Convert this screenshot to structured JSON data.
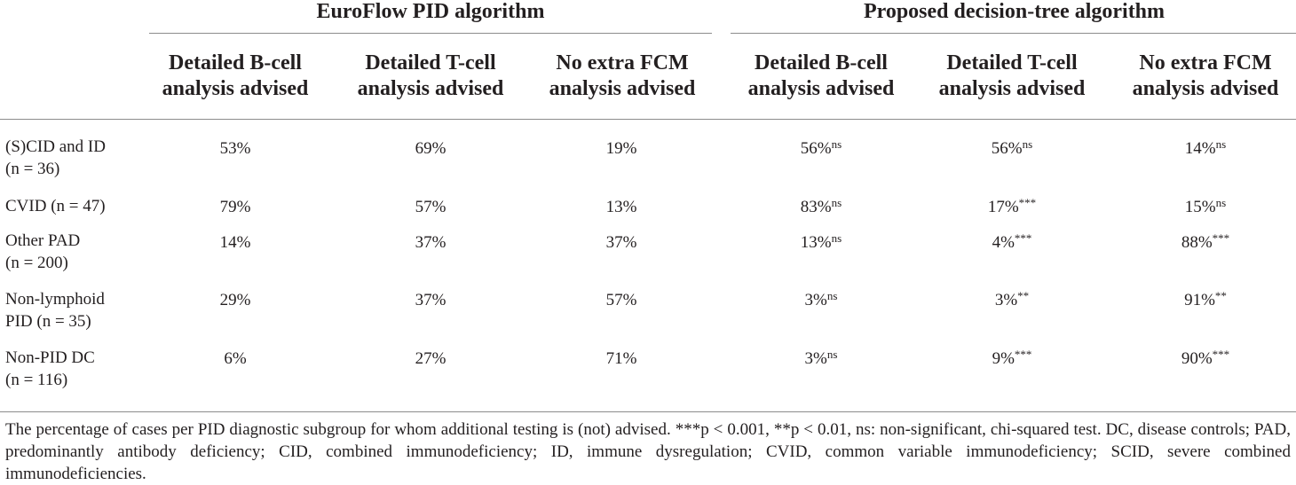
{
  "group_headers": {
    "euroflow": "EuroFlow PID algorithm",
    "proposed": "Proposed decision-tree algorithm"
  },
  "columns": [
    {
      "line1": "Detailed B-cell",
      "line2": "analysis advised"
    },
    {
      "line1": "Detailed T-cell",
      "line2": "analysis advised"
    },
    {
      "line1": "No extra FCM",
      "line2": "analysis advised"
    },
    {
      "line1": "Detailed B-cell",
      "line2": "analysis advised"
    },
    {
      "line1": "Detailed T-cell",
      "line2": "analysis advised"
    },
    {
      "line1": "No extra FCM",
      "line2": "analysis advised"
    }
  ],
  "rows": [
    {
      "label_line1": "(S)CID and ID",
      "label_line2": "(n = 36)",
      "cells": [
        {
          "v": "53%",
          "s": ""
        },
        {
          "v": "69%",
          "s": ""
        },
        {
          "v": "19%",
          "s": ""
        },
        {
          "v": "56%",
          "s": "ns"
        },
        {
          "v": "56%",
          "s": "ns"
        },
        {
          "v": "14%",
          "s": "ns"
        }
      ]
    },
    {
      "label_line1": "CVID (n = 47)",
      "label_line2": "",
      "cells": [
        {
          "v": "79%",
          "s": ""
        },
        {
          "v": "57%",
          "s": ""
        },
        {
          "v": "13%",
          "s": ""
        },
        {
          "v": "83%",
          "s": "ns"
        },
        {
          "v": "17%",
          "s": "***"
        },
        {
          "v": "15%",
          "s": "ns"
        }
      ]
    },
    {
      "label_line1": "Other PAD",
      "label_line2": "(n = 200)",
      "cells": [
        {
          "v": "14%",
          "s": ""
        },
        {
          "v": "37%",
          "s": ""
        },
        {
          "v": "37%",
          "s": ""
        },
        {
          "v": "13%",
          "s": "ns"
        },
        {
          "v": "4%",
          "s": "***"
        },
        {
          "v": "88%",
          "s": "***"
        }
      ]
    },
    {
      "label_line1": "Non-lymphoid",
      "label_line2": "PID (n = 35)",
      "cells": [
        {
          "v": "29%",
          "s": ""
        },
        {
          "v": "37%",
          "s": ""
        },
        {
          "v": "57%",
          "s": ""
        },
        {
          "v": "3%",
          "s": "ns"
        },
        {
          "v": "3%",
          "s": "**"
        },
        {
          "v": "91%",
          "s": "**"
        }
      ]
    },
    {
      "label_line1": "Non-PID DC",
      "label_line2": "(n = 116)",
      "cells": [
        {
          "v": "6%",
          "s": ""
        },
        {
          "v": "27%",
          "s": ""
        },
        {
          "v": "71%",
          "s": ""
        },
        {
          "v": "3%",
          "s": "ns"
        },
        {
          "v": "9%",
          "s": "***"
        },
        {
          "v": "90%",
          "s": "***"
        }
      ]
    }
  ],
  "footnote": "The percentage of cases per PID diagnostic subgroup for whom additional testing is (not) advised. ***p < 0.001, **p < 0.01, ns: non-significant, chi-squared test. DC, disease controls; PAD, predominantly antibody deficiency; CID, combined immunodeficiency; ID, immune dysregulation; CVID, common variable immunodeficiency; SCID, severe combined immunodeficiencies."
}
